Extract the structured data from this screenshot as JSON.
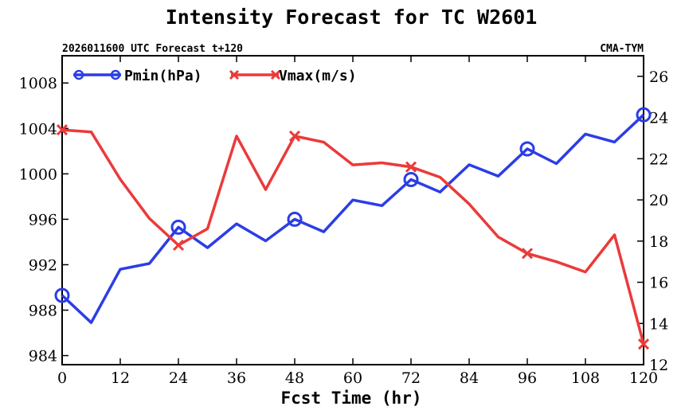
{
  "chart_data": {
    "type": "line",
    "title": "Intensity Forecast for TC W2601",
    "subtitle_left": "2026011600 UTC Forecast t+120",
    "subtitle_right": "CMA-TYM",
    "xlabel": "Fcst Time (hr)",
    "xlim": [
      0,
      120
    ],
    "xticks": [
      0,
      12,
      24,
      36,
      48,
      60,
      72,
      84,
      96,
      108,
      120
    ],
    "y_left": {
      "lim": [
        983.2,
        1010.4
      ],
      "ticks": [
        984,
        988,
        992,
        996,
        1000,
        1004,
        1008
      ]
    },
    "y_right": {
      "lim": [
        12,
        27
      ],
      "ticks": [
        12,
        14,
        16,
        18,
        20,
        22,
        24,
        26
      ]
    },
    "series": [
      {
        "name": "Pmin(hPa)",
        "axis": "left",
        "color": "#2b3de6",
        "marker": "circle",
        "x": [
          0,
          6,
          12,
          18,
          24,
          30,
          36,
          42,
          48,
          54,
          60,
          66,
          72,
          78,
          84,
          90,
          96,
          102,
          108,
          114,
          120
        ],
        "values": [
          989.3,
          986.9,
          991.6,
          992.1,
          995.3,
          993.5,
          995.6,
          994.1,
          996.0,
          994.9,
          997.7,
          997.2,
          999.5,
          998.4,
          1000.8,
          999.8,
          1002.2,
          1000.9,
          1003.5,
          1002.8,
          1005.2
        ],
        "marker_x": [
          0,
          24,
          48,
          72,
          96,
          120
        ]
      },
      {
        "name": "Vmax(m/s)",
        "axis": "right",
        "color": "#eb3a3a",
        "marker": "x",
        "x": [
          0,
          6,
          12,
          18,
          24,
          30,
          36,
          42,
          48,
          54,
          60,
          66,
          72,
          78,
          84,
          90,
          96,
          102,
          108,
          114,
          120
        ],
        "values": [
          23.4,
          23.3,
          21.0,
          19.1,
          17.8,
          18.6,
          23.1,
          20.5,
          23.1,
          22.8,
          21.7,
          21.8,
          21.6,
          21.1,
          19.8,
          18.2,
          17.4,
          17.0,
          16.5,
          18.3,
          13.0
        ],
        "marker_x": [
          0,
          24,
          48,
          72,
          96,
          120
        ]
      }
    ]
  }
}
